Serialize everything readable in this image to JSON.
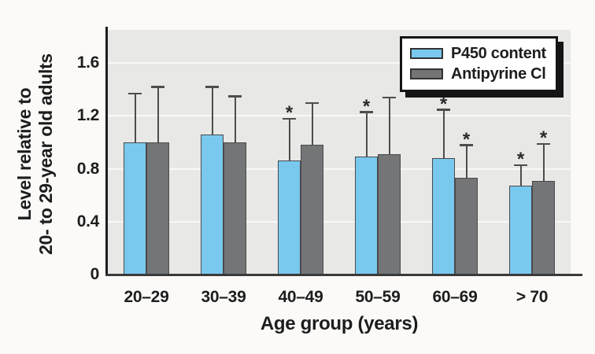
{
  "chart_data": {
    "type": "bar",
    "title": "",
    "xlabel": "Age group (years)",
    "ylabel_lines": [
      "Level relative to",
      "20- to 29-year old adults"
    ],
    "categories": [
      "20–29",
      "30–39",
      "40–49",
      "50–59",
      "60–69",
      "> 70"
    ],
    "series": [
      {
        "name": "P450 content",
        "color": "#79c9ef",
        "values": [
          1.0,
          1.06,
          0.86,
          0.89,
          0.88,
          0.67
        ],
        "error_tops": [
          1.36,
          1.41,
          1.17,
          1.22,
          1.24,
          0.82
        ],
        "significant": [
          false,
          false,
          true,
          true,
          true,
          true
        ]
      },
      {
        "name": "Antipyrine Cl",
        "color": "#747576",
        "values": [
          1.0,
          1.0,
          0.98,
          0.91,
          0.73,
          0.71
        ],
        "error_tops": [
          1.41,
          1.34,
          1.29,
          1.33,
          0.97,
          0.98
        ],
        "significant": [
          false,
          false,
          false,
          false,
          true,
          true
        ]
      }
    ],
    "y_ticks": [
      0,
      0.4,
      0.8,
      1.2,
      1.6
    ],
    "y_tick_labels": [
      "0",
      "0.4",
      "0.8",
      "1.2",
      "1.6"
    ],
    "ylim": [
      0,
      1.85
    ],
    "gridlines_at": [
      0.4,
      0.8,
      1.2,
      1.6
    ],
    "significance_marker": "*",
    "legend_position": "top-right",
    "colors": {
      "plot_background": "#e8e8e6",
      "grid": "#f8f8f6",
      "axis": "#1c1c1c",
      "error_bar": "#4d4d4d",
      "figure_background": "#fbfaf8"
    }
  }
}
